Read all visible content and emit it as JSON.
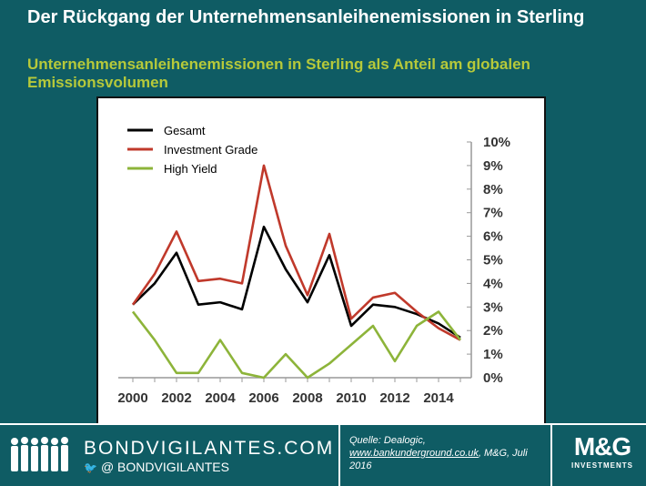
{
  "header": {
    "title": "Der Rückgang der Unternehmensanleihenemissionen in Sterling",
    "subtitle": "Unternehmensanleihenemissionen in Sterling als Anteil am globalen Emissionsvolumen"
  },
  "chart_data": {
    "type": "line",
    "title": "",
    "xlabel": "",
    "ylabel": "",
    "x": [
      2000,
      2001,
      2002,
      2003,
      2004,
      2005,
      2006,
      2007,
      2008,
      2009,
      2010,
      2011,
      2012,
      2013,
      2014,
      2015
    ],
    "x_ticks": [
      "2000",
      "2002",
      "2004",
      "2006",
      "2008",
      "2010",
      "2012",
      "2014"
    ],
    "y_ticks": [
      "0%",
      "1%",
      "2%",
      "3%",
      "4%",
      "5%",
      "6%",
      "7%",
      "8%",
      "9%",
      "10%"
    ],
    "ylim": [
      0,
      10
    ],
    "y_axis_side": "right",
    "legend_position": "top-left",
    "grid": false,
    "series": [
      {
        "name": "Gesamt",
        "color": "#000000",
        "values": [
          3.1,
          4.0,
          5.3,
          3.1,
          3.2,
          2.9,
          6.4,
          4.6,
          3.2,
          5.2,
          2.2,
          3.1,
          3.0,
          2.7,
          2.3,
          1.7
        ]
      },
      {
        "name": "Investment Grade",
        "color": "#c0392b",
        "values": [
          3.1,
          4.4,
          6.2,
          4.1,
          4.2,
          4.0,
          9.0,
          5.6,
          3.5,
          6.1,
          2.5,
          3.4,
          3.6,
          2.8,
          2.1,
          1.6
        ]
      },
      {
        "name": "High Yield",
        "color": "#8db43a",
        "values": [
          2.8,
          1.6,
          0.2,
          0.2,
          1.6,
          0.2,
          0.0,
          1.0,
          0.0,
          0.6,
          1.4,
          2.2,
          0.7,
          2.2,
          2.8,
          1.6
        ]
      }
    ]
  },
  "footer": {
    "brand": "BONDVIGILANTES.COM",
    "twitter_handle": "@  BONDVIGILANTES",
    "source_prefix": "Quelle: Dealogic,",
    "source_link": "www.bankunderground.co.uk",
    "source_suffix": ",  M&G, Juli 2016",
    "logo_text": "M&G",
    "logo_sub": "INVESTMENTS",
    "icons": [
      "people-silhouettes-icon",
      "twitter-bird-icon"
    ]
  }
}
